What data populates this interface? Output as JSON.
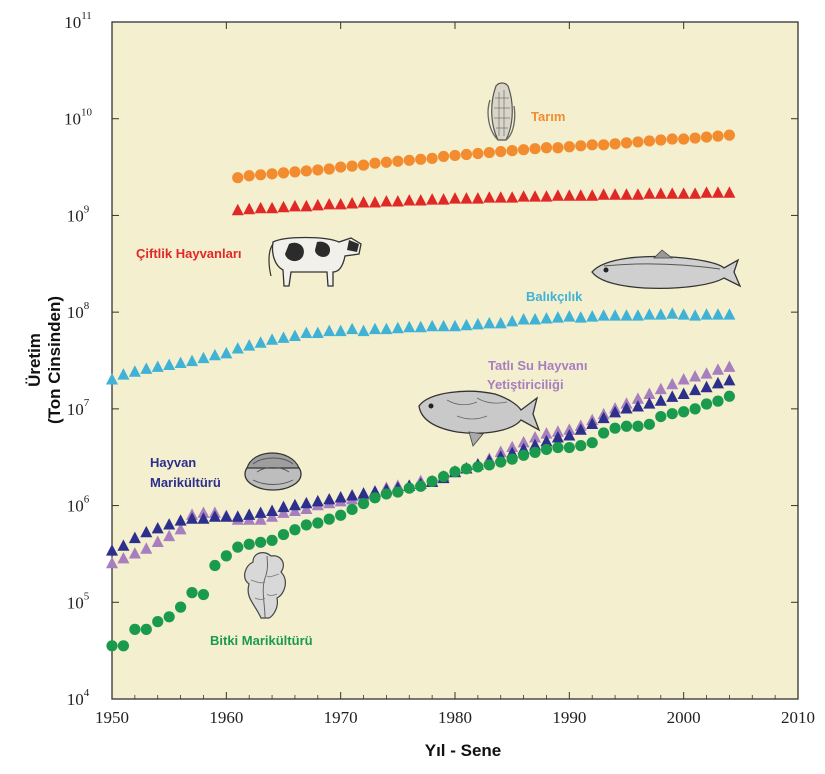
{
  "chart_data": {
    "type": "scatter",
    "y_scale": "log",
    "xlabel": "Yıl - Sene",
    "ylabel_line1": "Üretim",
    "ylabel_line2": "(Ton Cinsinden)",
    "xlim": [
      1950,
      2010
    ],
    "ylim_log10": [
      4,
      11
    ],
    "x_ticks": [
      "1950",
      "1960",
      "1970",
      "1980",
      "1990",
      "2000",
      "2010"
    ],
    "y_ticks": [
      {
        "base": "10",
        "exp": "4"
      },
      {
        "base": "10",
        "exp": "5"
      },
      {
        "base": "10",
        "exp": "6"
      },
      {
        "base": "10",
        "exp": "7"
      },
      {
        "base": "10",
        "exp": "8"
      },
      {
        "base": "10",
        "exp": "9"
      },
      {
        "base": "10",
        "exp": "10"
      },
      {
        "base": "10",
        "exp": "11"
      }
    ],
    "colors": {
      "background": "#f4efcf",
      "tarim": "#f28c2e",
      "ciftlik": "#e02826",
      "balikcilik": "#3fb2d5",
      "tatli_su": "#a77fbf",
      "hayvan_marikultur": "#2c2f8c",
      "bitki_marikultur": "#1a9a4c"
    },
    "series": [
      {
        "key": "tarim",
        "name": "Tarım",
        "marker": "circle",
        "x_start": 1961,
        "x_end": 2004,
        "log10_values": [
          9.39,
          9.41,
          9.42,
          9.43,
          9.44,
          9.45,
          9.46,
          9.47,
          9.48,
          9.5,
          9.51,
          9.52,
          9.54,
          9.55,
          9.56,
          9.57,
          9.58,
          9.59,
          9.61,
          9.62,
          9.63,
          9.64,
          9.65,
          9.66,
          9.67,
          9.68,
          9.69,
          9.7,
          9.7,
          9.71,
          9.72,
          9.73,
          9.73,
          9.74,
          9.75,
          9.76,
          9.77,
          9.78,
          9.79,
          9.79,
          9.8,
          9.81,
          9.82,
          9.83
        ]
      },
      {
        "key": "ciftlik",
        "name": "Çiftlik Hayvanları",
        "marker": "triangle",
        "x_start": 1961,
        "x_end": 2004,
        "log10_values": [
          9.05,
          9.06,
          9.07,
          9.07,
          9.08,
          9.09,
          9.09,
          9.1,
          9.11,
          9.11,
          9.12,
          9.13,
          9.13,
          9.14,
          9.14,
          9.15,
          9.15,
          9.16,
          9.16,
          9.17,
          9.17,
          9.17,
          9.18,
          9.18,
          9.18,
          9.19,
          9.19,
          9.19,
          9.2,
          9.2,
          9.2,
          9.2,
          9.21,
          9.21,
          9.21,
          9.21,
          9.22,
          9.22,
          9.22,
          9.22,
          9.22,
          9.23,
          9.23,
          9.23
        ]
      },
      {
        "key": "balikcilik",
        "name": "Balıkçılık",
        "marker": "triangle",
        "x_start": 1950,
        "x_end": 2004,
        "log10_values": [
          7.3,
          7.35,
          7.38,
          7.41,
          7.43,
          7.45,
          7.47,
          7.49,
          7.52,
          7.55,
          7.57,
          7.62,
          7.65,
          7.68,
          7.71,
          7.73,
          7.75,
          7.78,
          7.78,
          7.8,
          7.8,
          7.82,
          7.8,
          7.82,
          7.82,
          7.83,
          7.84,
          7.84,
          7.85,
          7.85,
          7.85,
          7.86,
          7.87,
          7.88,
          7.88,
          7.9,
          7.92,
          7.92,
          7.93,
          7.94,
          7.95,
          7.94,
          7.95,
          7.96,
          7.96,
          7.96,
          7.96,
          7.97,
          7.97,
          7.98,
          7.97,
          7.96,
          7.97,
          7.97,
          7.97
        ]
      },
      {
        "key": "tatli_su",
        "name": "Tatlı Su Hayvanı Yetiştiriciliği",
        "marker": "triangle",
        "x_start": 1950,
        "x_end": 2004,
        "log10_values": [
          5.4,
          5.45,
          5.5,
          5.55,
          5.62,
          5.68,
          5.75,
          5.9,
          5.92,
          5.92,
          5.89,
          5.85,
          5.85,
          5.85,
          5.88,
          5.92,
          5.94,
          5.96,
          6.0,
          6.02,
          6.04,
          6.06,
          6.1,
          6.14,
          6.18,
          6.2,
          6.2,
          6.25,
          6.25,
          6.3,
          6.35,
          6.38,
          6.42,
          6.48,
          6.55,
          6.6,
          6.65,
          6.7,
          6.74,
          6.76,
          6.78,
          6.82,
          6.88,
          6.94,
          7.0,
          7.05,
          7.1,
          7.15,
          7.2,
          7.25,
          7.3,
          7.33,
          7.36,
          7.4,
          7.43
        ]
      },
      {
        "key": "hayvan_marikultur",
        "name_line1": "Hayvan",
        "name_line2": "Marikültürü",
        "marker": "triangle",
        "x_start": 1950,
        "x_end": 2004,
        "log10_values": [
          5.53,
          5.58,
          5.66,
          5.72,
          5.76,
          5.8,
          5.84,
          5.86,
          5.86,
          5.88,
          5.88,
          5.88,
          5.9,
          5.92,
          5.94,
          5.98,
          6.0,
          6.02,
          6.04,
          6.06,
          6.08,
          6.1,
          6.12,
          6.14,
          6.16,
          6.18,
          6.2,
          6.22,
          6.24,
          6.28,
          6.34,
          6.38,
          6.42,
          6.46,
          6.5,
          6.54,
          6.58,
          6.62,
          6.66,
          6.7,
          6.72,
          6.78,
          6.84,
          6.9,
          6.96,
          7.0,
          7.02,
          7.05,
          7.08,
          7.12,
          7.15,
          7.19,
          7.22,
          7.26,
          7.29
        ]
      },
      {
        "key": "bitki_marikultur",
        "name": "Bitki Marikültürü",
        "marker": "circle",
        "x_start": 1950,
        "x_end": 2004,
        "log10_values": [
          4.55,
          4.55,
          4.72,
          4.72,
          4.8,
          4.85,
          4.95,
          5.1,
          5.08,
          5.38,
          5.48,
          5.57,
          5.6,
          5.62,
          5.64,
          5.7,
          5.75,
          5.8,
          5.82,
          5.86,
          5.9,
          5.96,
          6.02,
          6.08,
          6.12,
          6.14,
          6.18,
          6.2,
          6.25,
          6.3,
          6.35,
          6.38,
          6.4,
          6.42,
          6.45,
          6.48,
          6.52,
          6.55,
          6.58,
          6.6,
          6.6,
          6.62,
          6.65,
          6.75,
          6.8,
          6.82,
          6.82,
          6.84,
          6.92,
          6.95,
          6.97,
          7.0,
          7.05,
          7.08,
          7.13
        ]
      }
    ],
    "icons": [
      "corn-icon",
      "cow-icon",
      "herring-fish-icon",
      "carp-fish-icon",
      "clam-shell-icon",
      "seaweed-icon"
    ]
  }
}
